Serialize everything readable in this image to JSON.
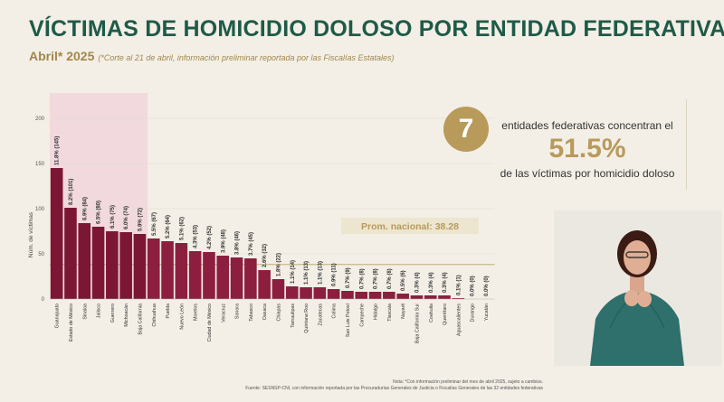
{
  "header": {
    "title": "VÍCTIMAS DE HOMICIDIO DOLOSO POR ENTIDAD FEDERATIVA",
    "period": "Abril* 2025",
    "note": "(*Corte al 21 de abril, información preliminar reportada por las Fiscalías Estatales)"
  },
  "callout": {
    "number": "7",
    "line1": "entidades federativas concentran el",
    "percent": "51.5%",
    "line3": "de las víctimas por homicidio doloso"
  },
  "footnotes": {
    "note": "Nota: *Con información preliminar del mes de abril 2025, sujeto a cambios.",
    "source": "Fuente: SESNSP-CNI, con información reportada por las Procuradurías Generales de Justicia o Fiscalías Generales de las 32 entidades federativas"
  },
  "colors": {
    "bar_top": "#7b1735",
    "bar_other": "#8c1f40",
    "highlight": "#f1d9dd",
    "avg_line": "#c8b78e",
    "avg_box": "#ece5d0",
    "title": "#1f5a48",
    "accent": "#b89a5b"
  },
  "chart_data": {
    "type": "bar",
    "ylabel": "Núm. de víctimas",
    "ylim": [
      0,
      220
    ],
    "yticks": [
      0,
      50,
      100,
      150,
      200
    ],
    "highlight_count": 7,
    "average": {
      "label": "Prom. nacional: 38.28",
      "value": 38.28
    },
    "categories": [
      "Guanajuato",
      "Estado de México",
      "Sinaloa",
      "Jalisco",
      "Guerrero",
      "Michoacán",
      "Baja California",
      "Chihuahua",
      "Puebla",
      "Nuevo León",
      "Morelos",
      "Ciudad de México",
      "Veracruz",
      "Sonora",
      "Tabasco",
      "Oaxaca",
      "Chiapas",
      "Tamaulipas",
      "Quintana Roo",
      "Zacatecas",
      "Colima",
      "San Luis Potosí",
      "Campeche",
      "Hidalgo",
      "Tlaxcala",
      "Nayarit",
      "Baja California Sur",
      "Coahuila",
      "Querétaro",
      "Aguascalientes",
      "Durango",
      "Yucatán"
    ],
    "values": [
      145,
      101,
      84,
      80,
      75,
      74,
      72,
      67,
      64,
      62,
      53,
      52,
      48,
      46,
      45,
      32,
      22,
      14,
      13,
      13,
      11,
      9,
      8,
      8,
      8,
      6,
      4,
      4,
      4,
      1,
      0,
      0
    ],
    "labels": [
      "11.8% (145)",
      "8.2% (101)",
      "6.9% (84)",
      "6.5% (80)",
      "6.1% (75)",
      "6.0% (74)",
      "5.9% (72)",
      "5.5% (67)",
      "5.2% (64)",
      "5.1% (62)",
      "4.3% (53)",
      "4.2% (52)",
      "3.9% (48)",
      "3.8% (46)",
      "3.7% (45)",
      "2.6% (32)",
      "1.8% (22)",
      "1.1% (14)",
      "1.1% (13)",
      "1.1% (13)",
      "0.9% (11)",
      "0.7% (9)",
      "0.7% (8)",
      "0.7% (8)",
      "0.7% (8)",
      "0.5% (6)",
      "0.3% (4)",
      "0.3% (4)",
      "0.3% (4)",
      "0.1% (1)",
      "0.0% (0)",
      "0.0% (0)"
    ]
  }
}
